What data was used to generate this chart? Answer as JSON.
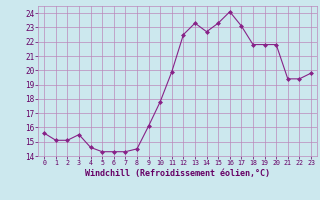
{
  "x": [
    0,
    1,
    2,
    3,
    4,
    5,
    6,
    7,
    8,
    9,
    10,
    11,
    12,
    13,
    14,
    15,
    16,
    17,
    18,
    19,
    20,
    21,
    22,
    23
  ],
  "y": [
    15.6,
    15.1,
    15.1,
    15.5,
    14.6,
    14.3,
    14.3,
    14.3,
    14.5,
    16.1,
    17.8,
    19.9,
    22.5,
    23.3,
    22.7,
    23.3,
    24.1,
    23.1,
    21.8,
    21.8,
    21.8,
    19.4,
    19.4,
    19.8
  ],
  "line_color": "#882288",
  "marker": "D",
  "marker_size": 2.0,
  "bg_color": "#cce8ee",
  "grid_color": "#bb88bb",
  "xlabel": "Windchill (Refroidissement éolien,°C)",
  "xlabel_color": "#660066",
  "tick_color": "#660066",
  "ylim": [
    14,
    24.5
  ],
  "yticks": [
    14,
    15,
    16,
    17,
    18,
    19,
    20,
    21,
    22,
    23,
    24
  ],
  "xlim": [
    -0.5,
    23.5
  ],
  "xticks": [
    0,
    1,
    2,
    3,
    4,
    5,
    6,
    7,
    8,
    9,
    10,
    11,
    12,
    13,
    14,
    15,
    16,
    17,
    18,
    19,
    20,
    21,
    22,
    23
  ],
  "figsize": [
    3.2,
    2.0
  ],
  "dpi": 100
}
